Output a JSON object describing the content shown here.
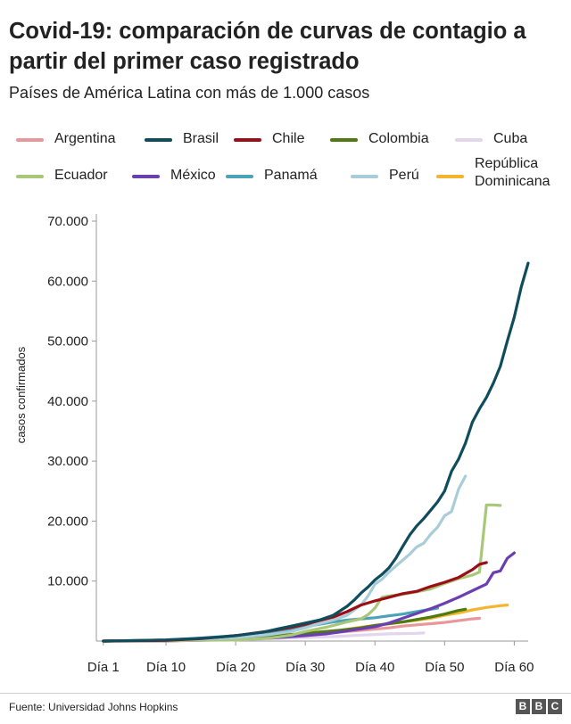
{
  "header": {
    "title": "Covid-19: comparación de curvas de contagio a partir del primer caso registrado",
    "subtitle": "Países de América Latina con más de 1.000 casos"
  },
  "footer": {
    "source": "Fuente: Universidad Johns Hopkins",
    "logo_letters": [
      "B",
      "B",
      "C"
    ]
  },
  "chart_data": {
    "type": "line",
    "title": "Covid-19: comparación de curvas de contagio a partir del primer caso registrado",
    "subtitle": "Países de América Latina con más de 1.000 casos",
    "xlabel": "",
    "ylabel": "casos confirmados",
    "xlim": [
      0,
      62
    ],
    "ylim": [
      0,
      70000
    ],
    "x_ticks": [
      1,
      10,
      20,
      30,
      40,
      50,
      60
    ],
    "x_tick_labels": [
      "Día 1",
      "Día 10",
      "Día 20",
      "Día 30",
      "Día 40",
      "Día 50",
      "Día 60"
    ],
    "y_ticks": [
      10000,
      20000,
      30000,
      40000,
      50000,
      60000,
      70000
    ],
    "y_tick_labels": [
      "10.000",
      "20.000",
      "30.000",
      "40.000",
      "50.000",
      "60.000",
      "70.000"
    ],
    "grid": false,
    "legend_position": "top",
    "series": [
      {
        "name": "Argentina",
        "color": "#e8979b",
        "points": [
          [
            1,
            0
          ],
          [
            10,
            0
          ],
          [
            20,
            300
          ],
          [
            25,
            600
          ],
          [
            30,
            900
          ],
          [
            35,
            1500
          ],
          [
            38,
            1800
          ],
          [
            40,
            2000
          ],
          [
            42,
            2200
          ],
          [
            44,
            2500
          ],
          [
            46,
            2700
          ],
          [
            48,
            2900
          ],
          [
            50,
            3100
          ],
          [
            52,
            3400
          ],
          [
            54,
            3700
          ],
          [
            55,
            3800
          ]
        ]
      },
      {
        "name": "Brasil",
        "color": "#0f4c5c",
        "points": [
          [
            1,
            0
          ],
          [
            10,
            200
          ],
          [
            14,
            400
          ],
          [
            18,
            700
          ],
          [
            20,
            900
          ],
          [
            24,
            1500
          ],
          [
            26,
            2000
          ],
          [
            28,
            2500
          ],
          [
            30,
            3000
          ],
          [
            32,
            3500
          ],
          [
            34,
            4300
          ],
          [
            36,
            5800
          ],
          [
            37,
            6800
          ],
          [
            38,
            8000
          ],
          [
            39,
            9000
          ],
          [
            40,
            10200
          ],
          [
            41,
            11100
          ],
          [
            42,
            12200
          ],
          [
            43,
            13800
          ],
          [
            44,
            15800
          ],
          [
            45,
            17700
          ],
          [
            46,
            19200
          ],
          [
            47,
            20400
          ],
          [
            48,
            21800
          ],
          [
            49,
            23200
          ],
          [
            50,
            25000
          ],
          [
            51,
            28300
          ],
          [
            52,
            30300
          ],
          [
            53,
            33000
          ],
          [
            54,
            36500
          ],
          [
            55,
            38700
          ],
          [
            56,
            40600
          ],
          [
            57,
            43000
          ],
          [
            58,
            45800
          ],
          [
            59,
            50000
          ],
          [
            60,
            54000
          ],
          [
            61,
            59000
          ],
          [
            62,
            63000
          ]
        ]
      },
      {
        "name": "Chile",
        "color": "#9b0e15",
        "points": [
          [
            1,
            0
          ],
          [
            10,
            100
          ],
          [
            15,
            400
          ],
          [
            20,
            900
          ],
          [
            25,
            1700
          ],
          [
            28,
            2300
          ],
          [
            30,
            2800
          ],
          [
            32,
            3400
          ],
          [
            34,
            4000
          ],
          [
            36,
            4900
          ],
          [
            38,
            6000
          ],
          [
            40,
            6700
          ],
          [
            42,
            7300
          ],
          [
            44,
            7900
          ],
          [
            46,
            8300
          ],
          [
            48,
            9100
          ],
          [
            50,
            9800
          ],
          [
            52,
            10600
          ],
          [
            54,
            11900
          ],
          [
            55,
            12800
          ],
          [
            56,
            13100
          ]
        ]
      },
      {
        "name": "Colombia",
        "color": "#4e7a11",
        "points": [
          [
            1,
            0
          ],
          [
            10,
            100
          ],
          [
            15,
            250
          ],
          [
            20,
            500
          ],
          [
            25,
            800
          ],
          [
            30,
            1300
          ],
          [
            35,
            1800
          ],
          [
            38,
            2200
          ],
          [
            40,
            2600
          ],
          [
            42,
            2900
          ],
          [
            44,
            3200
          ],
          [
            46,
            3600
          ],
          [
            48,
            4000
          ],
          [
            50,
            4500
          ],
          [
            52,
            5100
          ],
          [
            53,
            5300
          ]
        ]
      },
      {
        "name": "Cuba",
        "color": "#e3d5ec",
        "points": [
          [
            1,
            0
          ],
          [
            10,
            50
          ],
          [
            20,
            200
          ],
          [
            25,
            400
          ],
          [
            30,
            600
          ],
          [
            35,
            800
          ],
          [
            38,
            1000
          ],
          [
            40,
            1100
          ],
          [
            42,
            1200
          ],
          [
            44,
            1250
          ],
          [
            46,
            1300
          ],
          [
            47,
            1350
          ]
        ]
      },
      {
        "name": "Ecuador",
        "color": "#a9c779",
        "points": [
          [
            1,
            0
          ],
          [
            10,
            50
          ],
          [
            20,
            200
          ],
          [
            25,
            500
          ],
          [
            28,
            1000
          ],
          [
            30,
            1600
          ],
          [
            33,
            2300
          ],
          [
            36,
            3200
          ],
          [
            38,
            3700
          ],
          [
            39,
            4400
          ],
          [
            40,
            5500
          ],
          [
            41,
            7300
          ],
          [
            42,
            7500
          ],
          [
            44,
            7800
          ],
          [
            46,
            8200
          ],
          [
            48,
            8700
          ],
          [
            50,
            9600
          ],
          [
            52,
            10400
          ],
          [
            54,
            11000
          ],
          [
            55,
            11500
          ],
          [
            56,
            22700
          ],
          [
            57,
            22700
          ],
          [
            58,
            22600
          ]
        ]
      },
      {
        "name": "México",
        "color": "#6a3fb2",
        "points": [
          [
            1,
            0
          ],
          [
            10,
            50
          ],
          [
            20,
            250
          ],
          [
            25,
            500
          ],
          [
            30,
            900
          ],
          [
            33,
            1200
          ],
          [
            36,
            1700
          ],
          [
            40,
            2400
          ],
          [
            42,
            3000
          ],
          [
            44,
            3800
          ],
          [
            46,
            4600
          ],
          [
            48,
            5400
          ],
          [
            50,
            6300
          ],
          [
            52,
            7300
          ],
          [
            54,
            8400
          ],
          [
            56,
            9500
          ],
          [
            57,
            11400
          ],
          [
            58,
            11700
          ],
          [
            59,
            13800
          ],
          [
            60,
            14700
          ]
        ]
      },
      {
        "name": "Panamá",
        "color": "#4aa3b6",
        "points": [
          [
            1,
            0
          ],
          [
            10,
            200
          ],
          [
            15,
            500
          ],
          [
            20,
            900
          ],
          [
            25,
            1500
          ],
          [
            28,
            2000
          ],
          [
            30,
            2400
          ],
          [
            32,
            2800
          ],
          [
            34,
            3200
          ],
          [
            36,
            3500
          ],
          [
            38,
            3700
          ],
          [
            40,
            3900
          ],
          [
            42,
            4200
          ],
          [
            44,
            4500
          ],
          [
            46,
            4900
          ],
          [
            48,
            5300
          ],
          [
            49,
            5500
          ]
        ]
      },
      {
        "name": "Perú",
        "color": "#a9ccd9",
        "points": [
          [
            1,
            0
          ],
          [
            10,
            100
          ],
          [
            15,
            300
          ],
          [
            20,
            600
          ],
          [
            25,
            1100
          ],
          [
            28,
            1600
          ],
          [
            30,
            2200
          ],
          [
            32,
            2900
          ],
          [
            34,
            3500
          ],
          [
            36,
            4300
          ],
          [
            38,
            6000
          ],
          [
            39,
            7500
          ],
          [
            40,
            9500
          ],
          [
            41,
            10300
          ],
          [
            42,
            11500
          ],
          [
            43,
            12500
          ],
          [
            44,
            13500
          ],
          [
            45,
            14500
          ],
          [
            46,
            15700
          ],
          [
            47,
            16300
          ],
          [
            48,
            17800
          ],
          [
            49,
            19000
          ],
          [
            50,
            20900
          ],
          [
            51,
            21600
          ],
          [
            52,
            25300
          ],
          [
            53,
            27500
          ]
        ]
      },
      {
        "name": "República\nDominicana",
        "color": "#f5b430",
        "points": [
          [
            1,
            0
          ],
          [
            10,
            100
          ],
          [
            20,
            400
          ],
          [
            25,
            800
          ],
          [
            30,
            1300
          ],
          [
            35,
            1800
          ],
          [
            38,
            2300
          ],
          [
            40,
            2600
          ],
          [
            42,
            2900
          ],
          [
            44,
            3200
          ],
          [
            46,
            3500
          ],
          [
            48,
            3800
          ],
          [
            50,
            4300
          ],
          [
            52,
            4700
          ],
          [
            54,
            5200
          ],
          [
            56,
            5600
          ],
          [
            58,
            5900
          ],
          [
            59,
            6000
          ]
        ]
      }
    ]
  }
}
